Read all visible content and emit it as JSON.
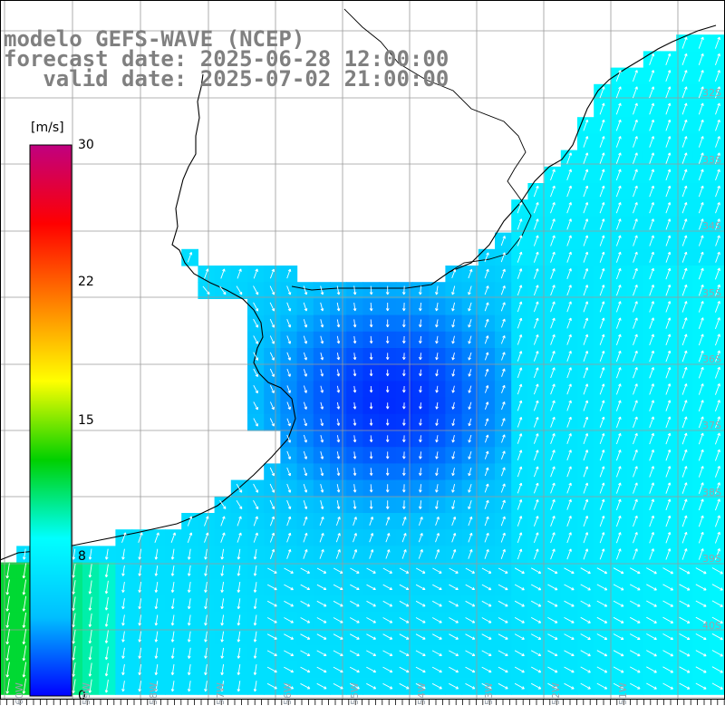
{
  "title": {
    "line1": "modelo GEFS-WAVE (NCEP)",
    "line2": "forecast date: 2025-06-28 12:00:00",
    "line3": "   valid date: 2025-07-02 21:00:00"
  },
  "colorbar": {
    "unit": "[m/s]",
    "ticks": [
      "0",
      "8",
      "15",
      "22",
      "30"
    ],
    "tick_values": [
      0,
      8,
      15,
      22,
      30
    ],
    "range": [
      0,
      30
    ],
    "stops": [
      "#0000ff",
      "#00bfff",
      "#00ffff",
      "#00d000",
      "#ffff00",
      "#ff8000",
      "#ff0000",
      "#c00080"
    ]
  },
  "map": {
    "variable": "wind speed",
    "units": "m/s",
    "field_colors": {
      "land": "#ffffff",
      "coastline": "#000000",
      "grid": "#9a9a9a",
      "arrows": "#ffffff"
    },
    "lat_labels": [
      "32S",
      "33S",
      "34S",
      "35S",
      "36S",
      "37S",
      "38S",
      "39S",
      "40S"
    ],
    "lon_labels": [
      "60W",
      "59W",
      "58W",
      "57W",
      "56W",
      "55W",
      "54W",
      "53W",
      "52W",
      "51W"
    ]
  }
}
